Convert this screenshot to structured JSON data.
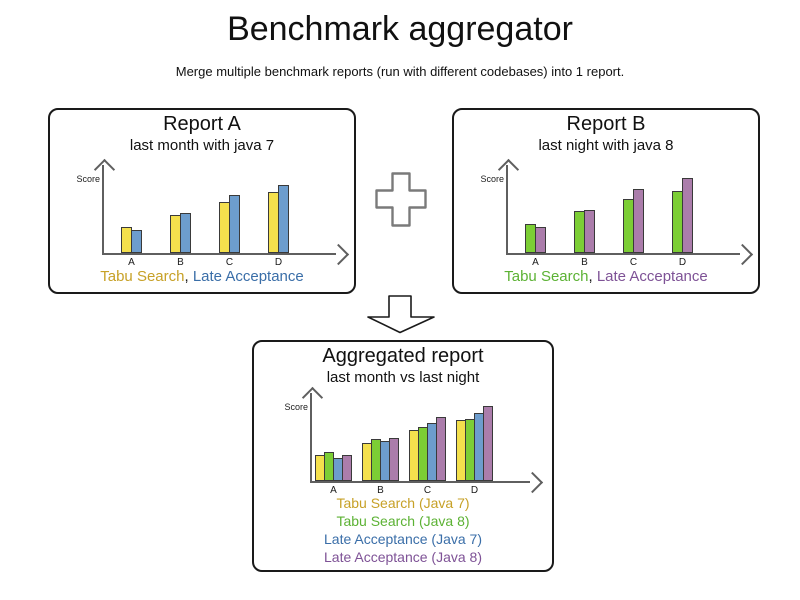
{
  "page": {
    "title": "Benchmark aggregator",
    "subtitle": "Merge multiple benchmark reports (run with different codebases) into 1 report."
  },
  "colors": {
    "axis": "#5f5f5f",
    "bar_border": "#3a3a3a",
    "panel_border": "#1a1a1a",
    "plus_outline": "#7a7a7a",
    "arrow_outline": "#1a1a1a",
    "legend_separator_color": "#1a1a1a",
    "series": {
      "tabu_java7": {
        "fill": "#F4E04D",
        "text": "#C7A127"
      },
      "tabu_java8": {
        "fill": "#7CCE35",
        "text": "#5CB234"
      },
      "late_java7": {
        "fill": "#6D9DCD",
        "text": "#3A6EA8"
      },
      "late_java8": {
        "fill": "#AB7DAB",
        "text": "#7E5296"
      }
    }
  },
  "operators": {
    "plus_icon": "plus",
    "arrow_icon": "arrow-down"
  },
  "chart_data": [
    {
      "type": "bar",
      "title": "Report A",
      "subtitle": "last month with java 7",
      "ylabel": "Score",
      "categories": [
        "A",
        "B",
        "C",
        "D"
      ],
      "series": [
        {
          "name": "Tabu Search",
          "color_key": "tabu_java7",
          "values": [
            26,
            38,
            51,
            61
          ]
        },
        {
          "name": "Late Acceptance",
          "color_key": "late_java7",
          "values": [
            23,
            40,
            58,
            68
          ]
        }
      ],
      "ylim": [
        0,
        100
      ],
      "grid": false,
      "legend_style": "inline",
      "legend_separator": ", ",
      "legend_position": "bottom"
    },
    {
      "type": "bar",
      "title": "Report B",
      "subtitle": "last night with java 8",
      "ylabel": "Score",
      "categories": [
        "A",
        "B",
        "C",
        "D"
      ],
      "series": [
        {
          "name": "Tabu Search",
          "color_key": "tabu_java8",
          "values": [
            29,
            42,
            54,
            62
          ]
        },
        {
          "name": "Late Acceptance",
          "color_key": "late_java8",
          "values": [
            26,
            43,
            64,
            75
          ]
        }
      ],
      "ylim": [
        0,
        100
      ],
      "grid": false,
      "legend_style": "inline",
      "legend_separator": ", ",
      "legend_position": "bottom"
    },
    {
      "type": "bar",
      "title": "Aggregated report",
      "subtitle": "last month vs last night",
      "ylabel": "Score",
      "categories": [
        "A",
        "B",
        "C",
        "D"
      ],
      "series": [
        {
          "name": "Tabu Search (Java 7)",
          "color_key": "tabu_java7",
          "values": [
            26,
            38,
            51,
            61
          ]
        },
        {
          "name": "Tabu Search (Java 8)",
          "color_key": "tabu_java8",
          "values": [
            29,
            42,
            54,
            62
          ]
        },
        {
          "name": "Late Acceptance (Java 7)",
          "color_key": "late_java7",
          "values": [
            23,
            40,
            58,
            68
          ]
        },
        {
          "name": "Late Acceptance (Java 8)",
          "color_key": "late_java8",
          "values": [
            26,
            43,
            64,
            75
          ]
        }
      ],
      "ylim": [
        0,
        100
      ],
      "grid": false,
      "legend_style": "stacked",
      "legend_position": "bottom"
    }
  ]
}
